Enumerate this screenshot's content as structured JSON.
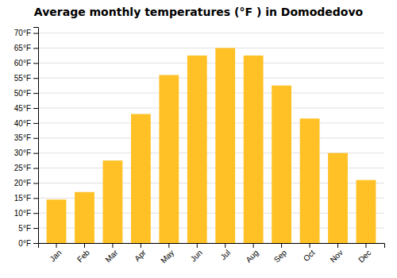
{
  "chart_data": {
    "type": "bar",
    "title": "Average monthly temperatures (°F ) in Domodedovo",
    "categories": [
      "Jan",
      "Feb",
      "Mar",
      "Apr",
      "May",
      "Jun",
      "Jul",
      "Aug",
      "Sep",
      "Oct",
      "Nov",
      "Dec"
    ],
    "values": [
      14.5,
      17.0,
      27.5,
      43.0,
      56.0,
      62.5,
      65.0,
      62.5,
      52.5,
      41.5,
      30.0,
      21.0
    ],
    "color": "#FFC125",
    "ylim": [
      0,
      72
    ],
    "yticks": [
      {
        "value": 0,
        "label": "0°F"
      },
      {
        "value": 5,
        "label": "5°F"
      },
      {
        "value": 10,
        "label": "10°F"
      },
      {
        "value": 15,
        "label": "15°F"
      },
      {
        "value": 20,
        "label": "20°F"
      },
      {
        "value": 25,
        "label": "25°F"
      },
      {
        "value": 30,
        "label": "30°F"
      },
      {
        "value": 35,
        "label": "35°F"
      },
      {
        "value": 40,
        "label": "40°F"
      },
      {
        "value": 45,
        "label": "45°F"
      },
      {
        "value": 50,
        "label": "50°F"
      },
      {
        "value": 55,
        "label": "55°F"
      },
      {
        "value": 60,
        "label": "60°F"
      },
      {
        "value": 65,
        "label": "65°F"
      },
      {
        "value": 70,
        "label": "70°F"
      }
    ],
    "grid": true
  }
}
